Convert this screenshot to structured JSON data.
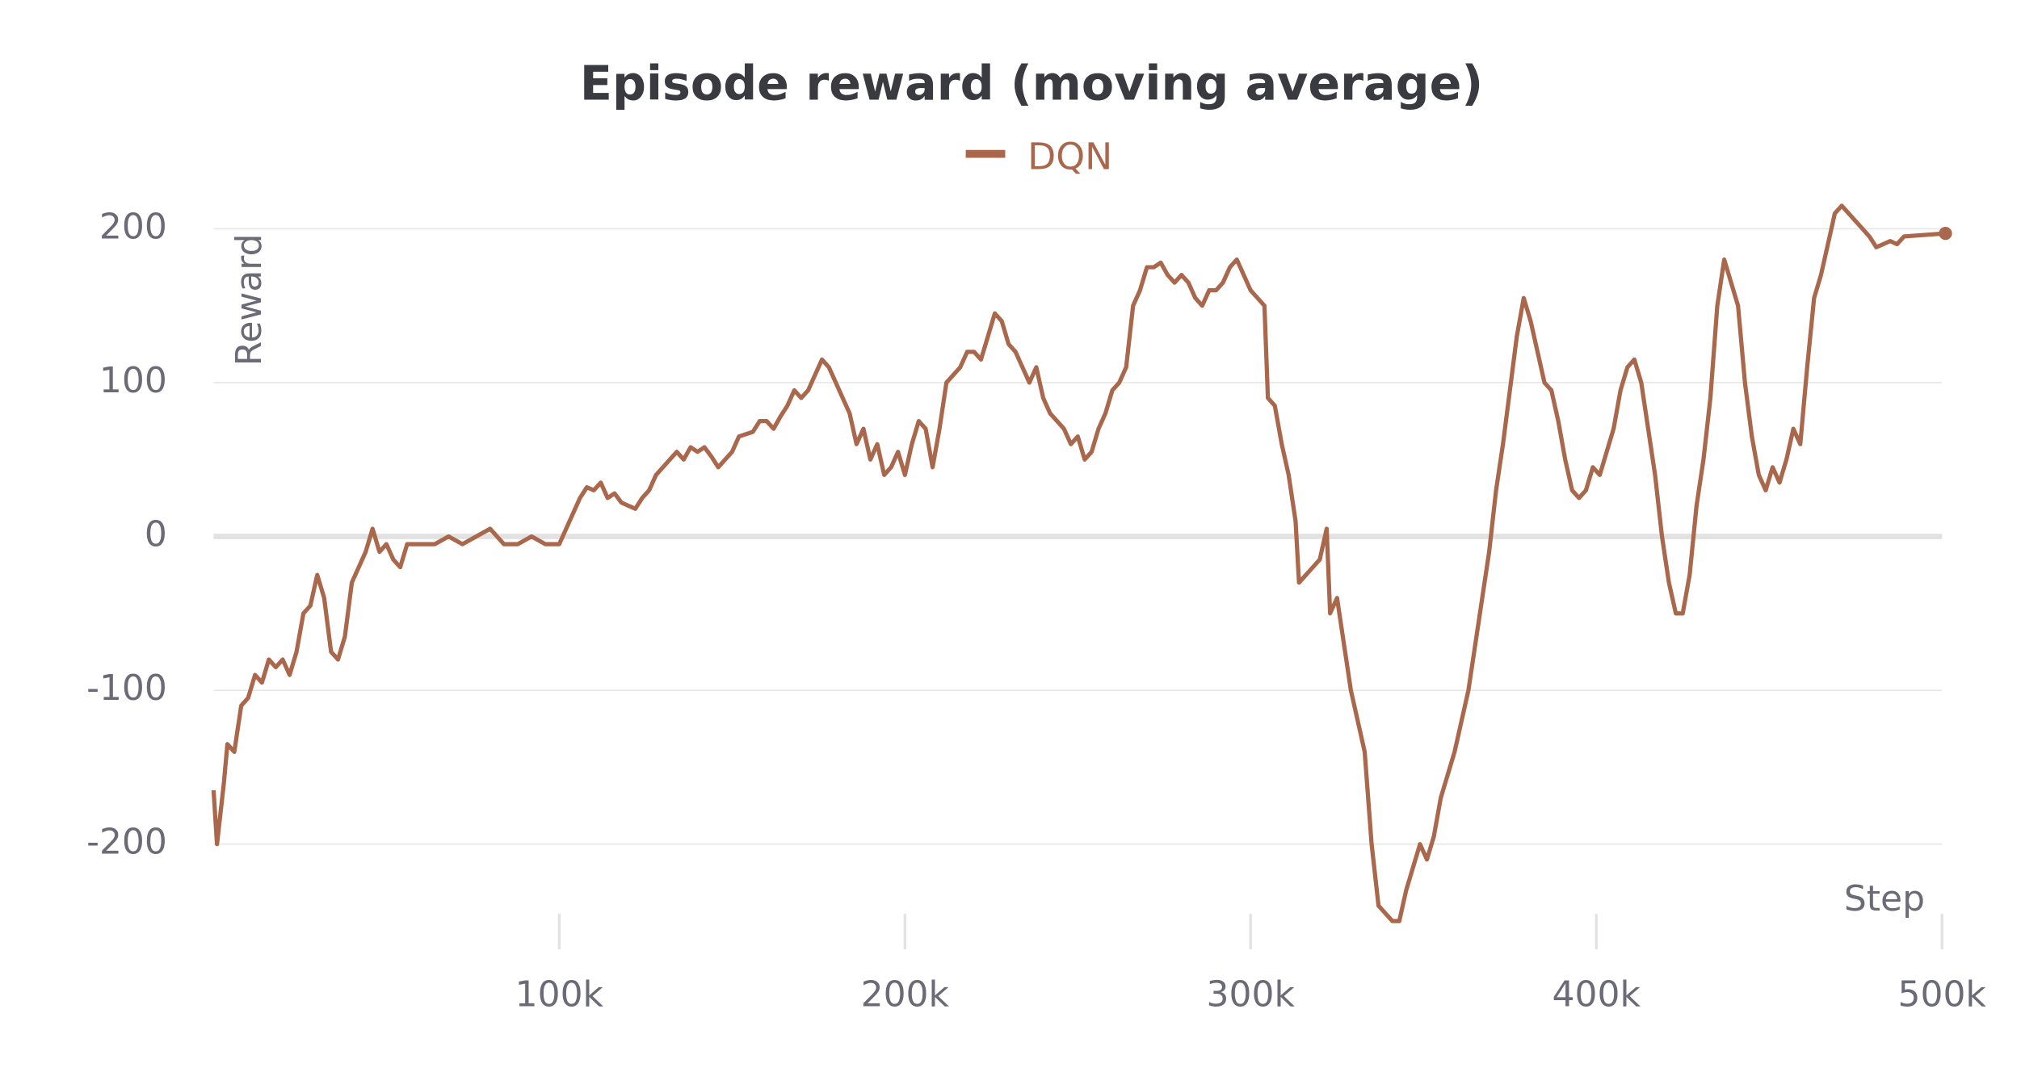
{
  "chart_data": {
    "type": "line",
    "title": "Episode reward (moving average)",
    "x_label": "Step",
    "y_label": "Reward",
    "x": [
      0,
      1000,
      3000,
      4000,
      6000,
      8000,
      10000,
      12000,
      14000,
      16000,
      18000,
      20000,
      22000,
      24000,
      26000,
      28000,
      30000,
      32000,
      34000,
      36000,
      38000,
      40000,
      42000,
      44000,
      46000,
      48000,
      50000,
      52000,
      54000,
      56000,
      58000,
      60000,
      64000,
      68000,
      72000,
      76000,
      80000,
      84000,
      88000,
      92000,
      96000,
      100000,
      102000,
      104000,
      106000,
      108000,
      110000,
      112000,
      114000,
      116000,
      118000,
      120000,
      122000,
      124000,
      126000,
      128000,
      130000,
      134000,
      136000,
      138000,
      140000,
      142000,
      144000,
      146000,
      148000,
      150000,
      152000,
      156000,
      158000,
      160000,
      162000,
      164000,
      166000,
      168000,
      170000,
      172000,
      174000,
      176000,
      178000,
      180000,
      182000,
      184000,
      186000,
      188000,
      190000,
      192000,
      194000,
      196000,
      198000,
      200000,
      202000,
      204000,
      206000,
      208000,
      210000,
      212000,
      214000,
      216000,
      218000,
      220000,
      222000,
      224000,
      226000,
      228000,
      230000,
      232000,
      234000,
      236000,
      238000,
      240000,
      242000,
      244000,
      246000,
      248000,
      250000,
      252000,
      254000,
      256000,
      258000,
      260000,
      262000,
      264000,
      266000,
      268000,
      270000,
      272000,
      274000,
      276000,
      278000,
      280000,
      282000,
      284000,
      286000,
      288000,
      290000,
      292000,
      294000,
      296000,
      298000,
      300000,
      302000,
      304000,
      305000,
      307000,
      309000,
      311000,
      313000,
      314000,
      316000,
      318000,
      320000,
      322000,
      323000,
      325000,
      327000,
      329000,
      331000,
      333000,
      335000,
      337000,
      339000,
      341000,
      343000,
      345000,
      347000,
      349000,
      351000,
      353000,
      355000,
      357000,
      359000,
      361000,
      363000,
      365000,
      367000,
      369000,
      371000,
      373000,
      375000,
      377000,
      379000,
      381000,
      383000,
      385000,
      387000,
      389000,
      391000,
      393000,
      395000,
      397000,
      399000,
      401000,
      403000,
      405000,
      407000,
      409000,
      411000,
      413000,
      415000,
      417000,
      419000,
      421000,
      423000,
      425000,
      427000,
      429000,
      431000,
      433000,
      435000,
      437000,
      439000,
      441000,
      443000,
      445000,
      447000,
      449000,
      451000,
      453000,
      455000,
      457000,
      459000,
      461000,
      463000,
      465000,
      467000,
      469000,
      471000,
      473000,
      475000,
      477000,
      479000,
      481000,
      483000,
      485000,
      487000,
      489000,
      501000
    ],
    "series": [
      {
        "name": "DQN",
        "color": "#a9674c",
        "values": [
          -165,
          -200,
          -160,
          -135,
          -140,
          -110,
          -105,
          -90,
          -95,
          -80,
          -85,
          -80,
          -90,
          -75,
          -50,
          -45,
          -25,
          -40,
          -75,
          -80,
          -65,
          -30,
          -20,
          -10,
          5,
          -10,
          -5,
          -15,
          -20,
          -5,
          -5,
          -5,
          -5,
          0,
          -5,
          0,
          5,
          -5,
          -5,
          0,
          -5,
          -5,
          5,
          15,
          25,
          32,
          30,
          35,
          25,
          28,
          22,
          20,
          18,
          25,
          30,
          40,
          45,
          55,
          50,
          58,
          55,
          58,
          52,
          45,
          50,
          55,
          65,
          68,
          75,
          75,
          70,
          78,
          85,
          95,
          90,
          95,
          105,
          115,
          110,
          100,
          90,
          80,
          60,
          70,
          50,
          60,
          40,
          45,
          55,
          40,
          60,
          75,
          70,
          45,
          70,
          100,
          105,
          110,
          120,
          120,
          115,
          130,
          145,
          140,
          125,
          120,
          110,
          100,
          110,
          90,
          80,
          75,
          70,
          60,
          65,
          50,
          55,
          70,
          80,
          95,
          100,
          110,
          150,
          160,
          175,
          175,
          178,
          170,
          165,
          170,
          165,
          155,
          150,
          160,
          160,
          165,
          175,
          180,
          170,
          160,
          155,
          150,
          90,
          85,
          60,
          40,
          10,
          -30,
          -25,
          -20,
          -15,
          5,
          -50,
          -40,
          -70,
          -100,
          -120,
          -140,
          -200,
          -240,
          -245,
          -250,
          -250,
          -230,
          -215,
          -200,
          -210,
          -195,
          -170,
          -155,
          -140,
          -120,
          -100,
          -70,
          -40,
          -10,
          30,
          60,
          95,
          130,
          155,
          140,
          120,
          100,
          95,
          75,
          50,
          30,
          25,
          30,
          45,
          40,
          55,
          70,
          95,
          110,
          115,
          100,
          70,
          40,
          0,
          -30,
          -50,
          -50,
          -25,
          20,
          50,
          90,
          150,
          180,
          165,
          150,
          100,
          65,
          40,
          30,
          45,
          35,
          50,
          70,
          60,
          110,
          155,
          170,
          190,
          210,
          215,
          210,
          205,
          200,
          195,
          188,
          190,
          192,
          190,
          195,
          197
        ]
      }
    ],
    "xlim": [
      0,
      500000
    ],
    "xticks": [
      {
        "value": 100000,
        "label": "100k"
      },
      {
        "value": 200000,
        "label": "200k"
      },
      {
        "value": 300000,
        "label": "300k"
      },
      {
        "value": 400000,
        "label": "400k"
      },
      {
        "value": 500000,
        "label": "500k"
      }
    ],
    "ylim": [
      -255,
      200
    ],
    "yticks": [
      -200,
      -100,
      0,
      100,
      200
    ],
    "grid": true
  }
}
